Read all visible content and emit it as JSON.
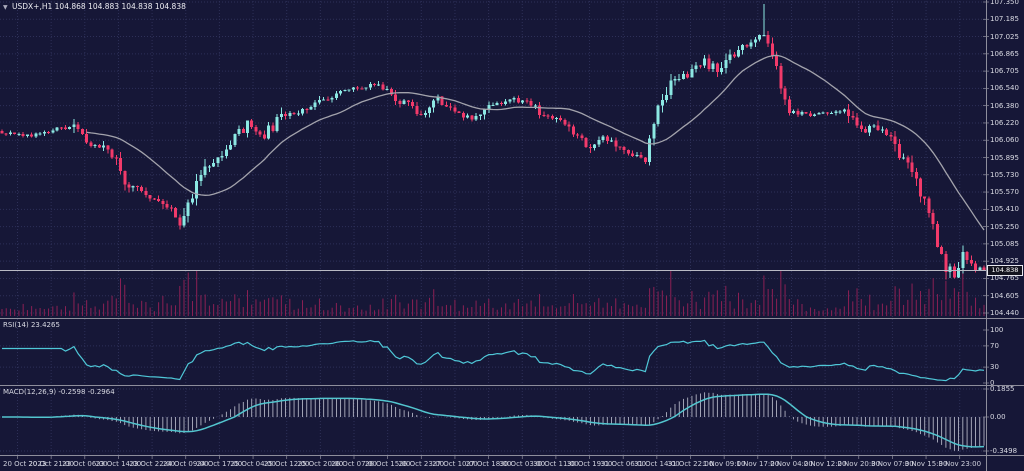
{
  "window": {
    "collapse_icon": "▼",
    "symbol_timeframe": "USDX+,H1",
    "ohlc_text": "104.868 104.883 104.838 104.838"
  },
  "main_pane": {
    "price_axis_labels": [
      "107.350",
      "107.185",
      "107.025",
      "106.865",
      "106.705",
      "106.540",
      "106.380",
      "106.220",
      "106.060",
      "105.895",
      "105.730",
      "105.570",
      "105.410",
      "105.250",
      "105.085",
      "104.925",
      "104.765",
      "104.605",
      "104.440"
    ],
    "current_price": "104.838"
  },
  "rsi_pane": {
    "label": "RSI(14) 23.4265",
    "axis_labels": [
      {
        "text": "100",
        "value": 100
      },
      {
        "text": "70",
        "value": 70
      },
      {
        "text": "30",
        "value": 30
      },
      {
        "text": "0",
        "value": 0
      }
    ],
    "overbought": 70,
    "oversold": 30
  },
  "macd_pane": {
    "label": "MACD(12,26,9) -0.2598 -0.2964",
    "axis_labels": [
      {
        "text": "0.1855",
        "value": 0.1855
      },
      {
        "text": "0.00",
        "value": 0
      },
      {
        "text": "-0.3498",
        "value": -0.3498
      }
    ]
  },
  "time_axis": {
    "labels": [
      "20 Oct 2023",
      "20 Oct 21:00",
      "23 Oct 06:00",
      "23 Oct 14:00",
      "23 Oct 22:00",
      "24 Oct 09:00",
      "24 Oct 17:00",
      "25 Oct 04:00",
      "25 Oct 12:00",
      "25 Oct 20:00",
      "26 Oct 07:00",
      "26 Oct 15:00",
      "26 Oct 23:00",
      "27 Oct 10:00",
      "27 Oct 18:00",
      "30 Oct 03:00",
      "30 Oct 11:00",
      "30 Oct 19:00",
      "31 Oct 06:00",
      "31 Oct 14:00",
      "31 Oct 22:00",
      "1 Nov 09:00",
      "1 Nov 17:00",
      "2 Nov 04:00",
      "2 Nov 12:00",
      "2 Nov 20:00",
      "3 Nov 07:00",
      "3 Nov 15:00",
      "3 Nov 23:00"
    ]
  },
  "colors": {
    "background": "#161737",
    "grid": "#2e3058",
    "bull": "#8ce8e3",
    "bear": "#f23a6a",
    "volume": "#8c2054",
    "ma": "#a3a3ac",
    "rsi": "#4fc8d8",
    "macd_signal": "#53c6cf",
    "macd_hist": "#c4c6d4",
    "axis_text": "#d9dae3",
    "separator": "#8e8e9c",
    "price_line": "#b9bac4"
  },
  "chart_data": {
    "type": "candlestick",
    "symbol": "USDX+",
    "timeframe": "H1",
    "bars": 233,
    "ylim": [
      104.44,
      107.35
    ],
    "ohlc_current": {
      "open": 104.868,
      "high": 104.883,
      "low": 104.838,
      "close": 104.838
    },
    "close_anchors": [
      [
        0,
        106.13
      ],
      [
        4,
        106.12
      ],
      [
        9,
        106.1
      ],
      [
        14,
        106.17
      ],
      [
        16,
        106.2
      ],
      [
        20,
        106.03
      ],
      [
        23,
        106.0
      ],
      [
        26,
        105.92
      ],
      [
        29,
        105.7
      ],
      [
        33,
        105.55
      ],
      [
        36,
        105.5
      ],
      [
        40,
        105.38
      ],
      [
        42,
        105.3
      ],
      [
        44,
        105.48
      ],
      [
        47,
        105.72
      ],
      [
        50,
        105.88
      ],
      [
        54,
        106.03
      ],
      [
        58,
        106.2
      ],
      [
        62,
        106.1
      ],
      [
        66,
        106.27
      ],
      [
        70,
        106.33
      ],
      [
        76,
        106.44
      ],
      [
        81,
        106.51
      ],
      [
        87,
        106.58
      ],
      [
        91,
        106.52
      ],
      [
        94,
        106.43
      ],
      [
        99,
        106.3
      ],
      [
        103,
        106.43
      ],
      [
        107,
        106.34
      ],
      [
        111,
        106.26
      ],
      [
        115,
        106.37
      ],
      [
        120,
        106.44
      ],
      [
        124,
        106.4
      ],
      [
        129,
        106.28
      ],
      [
        133,
        106.19
      ],
      [
        139,
        106.0
      ],
      [
        143,
        106.08
      ],
      [
        147,
        105.95
      ],
      [
        152,
        105.88
      ],
      [
        155,
        106.33
      ],
      [
        158,
        106.55
      ],
      [
        163,
        106.72
      ],
      [
        166,
        106.8
      ],
      [
        169,
        106.7
      ],
      [
        172,
        106.85
      ],
      [
        175,
        106.94
      ],
      [
        179,
        107.06
      ],
      [
        180,
        107.05
      ],
      [
        182,
        106.86
      ],
      [
        184,
        106.52
      ],
      [
        186,
        106.33
      ],
      [
        191,
        106.28
      ],
      [
        195,
        106.32
      ],
      [
        199,
        106.35
      ],
      [
        203,
        106.12
      ],
      [
        206,
        106.2
      ],
      [
        210,
        106.07
      ],
      [
        212,
        105.92
      ],
      [
        215,
        105.72
      ],
      [
        218,
        105.5
      ],
      [
        221,
        105.12
      ],
      [
        223,
        104.88
      ],
      [
        225,
        104.8
      ],
      [
        227,
        104.95
      ],
      [
        230,
        104.87
      ],
      [
        231,
        104.868
      ],
      [
        232,
        104.838
      ]
    ],
    "spike": {
      "bar": 180,
      "high": 107.33
    },
    "indicators": [
      {
        "name": "MA",
        "period": 21
      },
      {
        "name": "RSI",
        "period": 14,
        "last": 23.4265,
        "range": [
          0,
          100
        ],
        "levels": [
          30,
          70
        ]
      },
      {
        "name": "MACD",
        "fast": 12,
        "slow": 26,
        "signal": 9,
        "last_macd": -0.2598,
        "last_signal": -0.2964,
        "axis_max": 0.1855,
        "axis_min": -0.3498
      }
    ],
    "volume": {
      "style": "bars"
    }
  }
}
